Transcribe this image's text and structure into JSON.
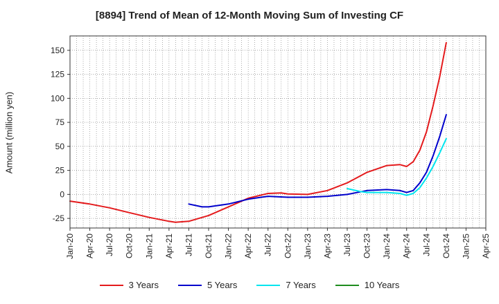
{
  "chart_data": {
    "type": "line",
    "title": "[8894]  Trend of Mean of 12-Month Moving Sum of Investing CF",
    "xlabel": "",
    "ylabel": "Amount (million yen)",
    "ylim": [
      -35,
      165
    ],
    "yticks": [
      -25,
      0,
      25,
      50,
      75,
      100,
      125,
      150
    ],
    "xlim": [
      "Jan-20",
      "Apr-25"
    ],
    "xticks": [
      "Jan-20",
      "Apr-20",
      "Jul-20",
      "Oct-20",
      "Jan-21",
      "Apr-21",
      "Jul-21",
      "Oct-21",
      "Jan-22",
      "Apr-22",
      "Jul-22",
      "Oct-22",
      "Jan-23",
      "Apr-23",
      "Jul-23",
      "Oct-23",
      "Jan-24",
      "Apr-24",
      "Jul-24",
      "Oct-24",
      "Jan-25",
      "Apr-25"
    ],
    "grid": true,
    "legend_position": "bottom",
    "series": [
      {
        "name": "3 Years",
        "color": "#e41a1c",
        "points": [
          [
            "Jan-20",
            -7
          ],
          [
            "Apr-20",
            -10
          ],
          [
            "Jul-20",
            -14
          ],
          [
            "Oct-20",
            -19
          ],
          [
            "Jan-21",
            -24
          ],
          [
            "Apr-21",
            -28
          ],
          [
            "May-21",
            -29
          ],
          [
            "Jul-21",
            -28
          ],
          [
            "Oct-21",
            -22
          ],
          [
            "Jan-22",
            -13
          ],
          [
            "Apr-22",
            -4
          ],
          [
            "Jul-22",
            1
          ],
          [
            "Sep-22",
            1.5
          ],
          [
            "Oct-22",
            0.5
          ],
          [
            "Jan-23",
            0
          ],
          [
            "Apr-23",
            4
          ],
          [
            "Jul-23",
            12
          ],
          [
            "Oct-23",
            23
          ],
          [
            "Jan-24",
            30
          ],
          [
            "Mar-24",
            31
          ],
          [
            "Apr-24",
            29
          ],
          [
            "May-24",
            34
          ],
          [
            "Jun-24",
            46
          ],
          [
            "Jul-24",
            65
          ],
          [
            "Aug-24",
            92
          ],
          [
            "Sep-24",
            122
          ],
          [
            "Oct-24",
            158
          ]
        ]
      },
      {
        "name": "5 Years",
        "color": "#0000cc",
        "points": [
          [
            "Jul-21",
            -10
          ],
          [
            "Sep-21",
            -13
          ],
          [
            "Oct-21",
            -13
          ],
          [
            "Jan-22",
            -10
          ],
          [
            "Apr-22",
            -5
          ],
          [
            "Jul-22",
            -2
          ],
          [
            "Oct-22",
            -3
          ],
          [
            "Jan-23",
            -3
          ],
          [
            "Apr-23",
            -2
          ],
          [
            "Jul-23",
            0
          ],
          [
            "Oct-23",
            4
          ],
          [
            "Jan-24",
            5
          ],
          [
            "Mar-24",
            4
          ],
          [
            "Apr-24",
            2
          ],
          [
            "May-24",
            4
          ],
          [
            "Jun-24",
            12
          ],
          [
            "Jul-24",
            23
          ],
          [
            "Aug-24",
            40
          ],
          [
            "Sep-24",
            60
          ],
          [
            "Oct-24",
            83
          ]
        ]
      },
      {
        "name": "7 Years",
        "color": "#00e5ee",
        "points": [
          [
            "Jul-23",
            6
          ],
          [
            "Sep-23",
            3
          ],
          [
            "Oct-23",
            2
          ],
          [
            "Jan-24",
            2
          ],
          [
            "Mar-24",
            1
          ],
          [
            "Apr-24",
            -1
          ],
          [
            "May-24",
            1
          ],
          [
            "Jun-24",
            7
          ],
          [
            "Jul-24",
            17
          ],
          [
            "Aug-24",
            29
          ],
          [
            "Sep-24",
            43
          ],
          [
            "Oct-24",
            58
          ]
        ]
      },
      {
        "name": "10 Years",
        "color": "#1e8c1e",
        "points": []
      }
    ]
  }
}
